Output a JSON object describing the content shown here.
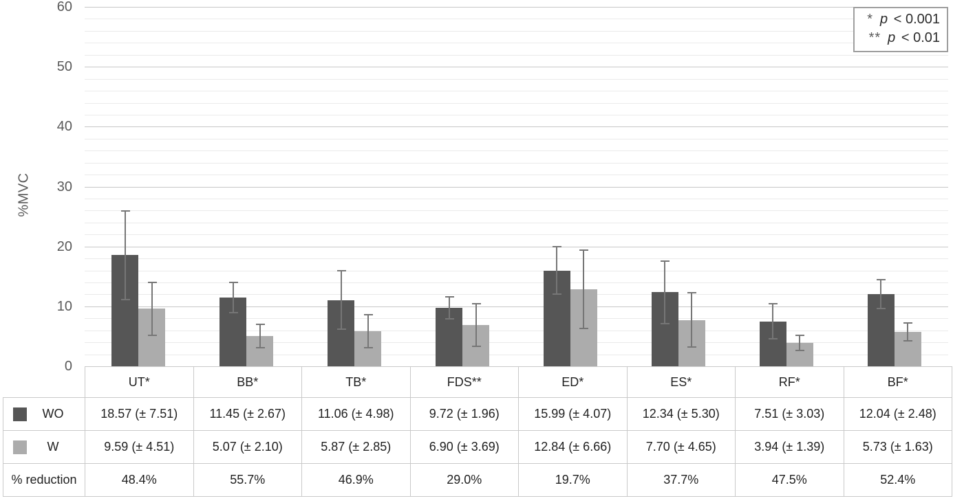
{
  "chart_data": {
    "type": "bar",
    "ylabel": "%MVC",
    "ylim": [
      0,
      60
    ],
    "yticks": [
      0,
      10,
      20,
      30,
      40,
      50,
      60
    ],
    "minor_gridline_step": 2,
    "major_gridline_step": 10,
    "grid": true,
    "legend_position": "top-right",
    "categories": [
      "UT*",
      "BB*",
      "TB*",
      "FDS**",
      "ED*",
      "ES*",
      "RF*",
      "BF*"
    ],
    "series": [
      {
        "name": "WO",
        "color": "#565656",
        "values": [
          18.57,
          11.45,
          11.06,
          9.72,
          15.99,
          12.34,
          7.51,
          12.04
        ],
        "errors": [
          7.51,
          2.67,
          4.98,
          1.96,
          4.07,
          5.3,
          3.03,
          2.48
        ]
      },
      {
        "name": "W",
        "color": "#acacac",
        "values": [
          9.59,
          5.07,
          5.87,
          6.9,
          12.84,
          7.7,
          3.94,
          5.73
        ],
        "errors": [
          4.51,
          2.1,
          2.85,
          3.69,
          6.66,
          4.65,
          1.39,
          1.63
        ]
      }
    ],
    "significance_legend": [
      {
        "marker": "*",
        "variable": "p",
        "comparison": "< 0.001"
      },
      {
        "marker": "**",
        "variable": "p",
        "comparison": "< 0.01"
      }
    ]
  },
  "table": {
    "rows": [
      {
        "label": "WO",
        "swatch_color": "#565656",
        "cells": [
          "18.57 (± 7.51)",
          "11.45 (± 2.67)",
          "11.06 (± 4.98)",
          "9.72 (± 1.96)",
          "15.99 (± 4.07)",
          "12.34 (± 5.30)",
          "7.51 (± 3.03)",
          "12.04 (± 2.48)"
        ]
      },
      {
        "label": "W",
        "swatch_color": "#acacac",
        "cells": [
          "9.59 (± 4.51)",
          "5.07 (± 2.10)",
          "5.87 (± 2.85)",
          "6.90 (± 3.69)",
          "12.84 (± 6.66)",
          "7.70 (± 4.65)",
          "3.94 (± 1.39)",
          "5.73 (± 1.63)"
        ]
      },
      {
        "label": "% reduction",
        "swatch_color": null,
        "cells": [
          "48.4%",
          "55.7%",
          "46.9%",
          "29.0%",
          "19.7%",
          "37.7%",
          "47.5%",
          "52.4%"
        ]
      }
    ]
  },
  "colors": {
    "gridline_major": "#c7c7c7",
    "gridline_minor": "#eaeaea",
    "error_bar": "#767676",
    "table_border": "#c9c9c9",
    "axis_text": "#595959",
    "legend_border": "#9e9e9e"
  }
}
